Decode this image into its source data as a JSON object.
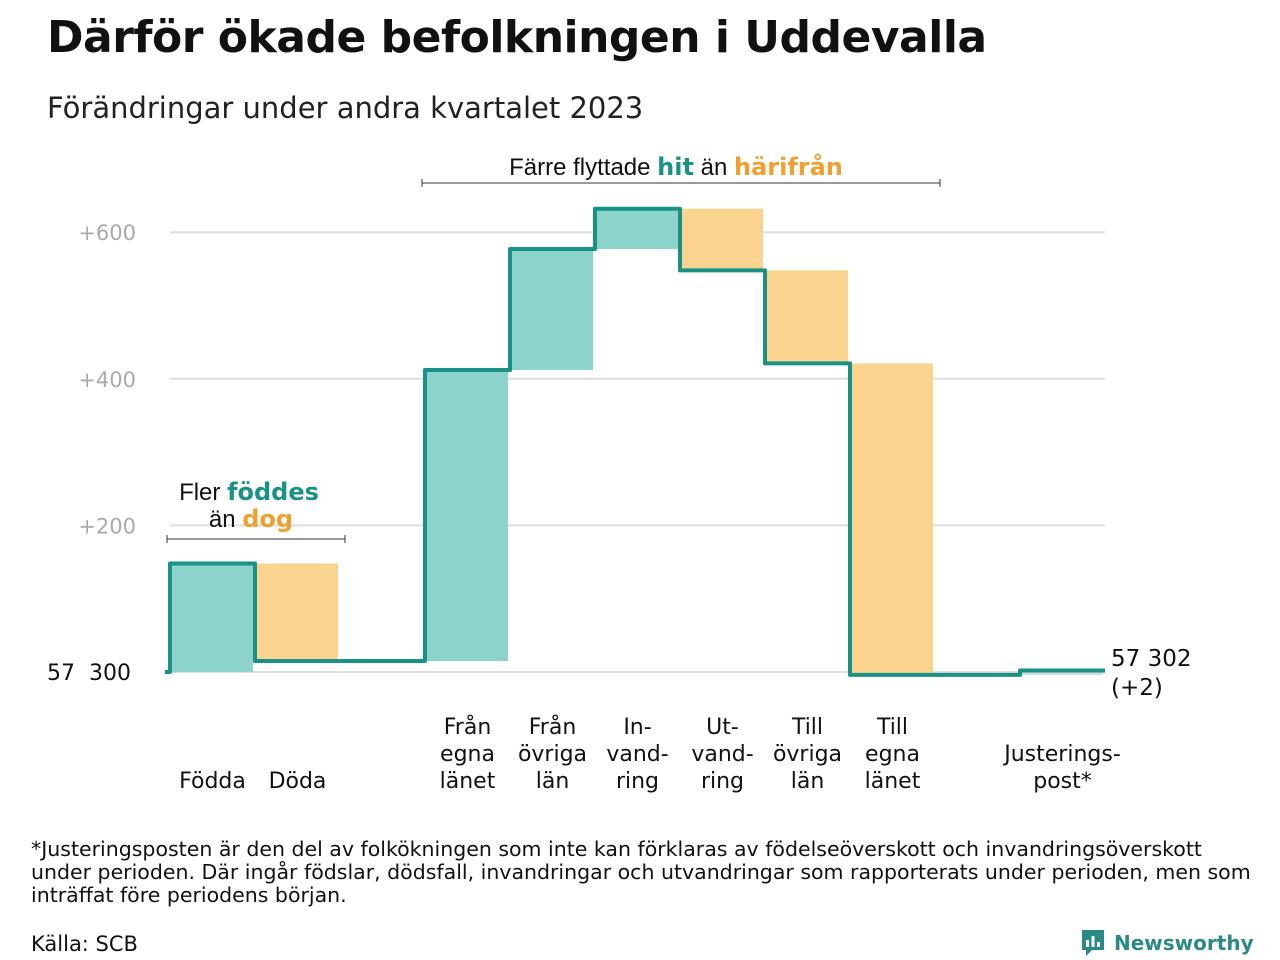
{
  "header": {
    "title": "Därför ökade befolkningen i Uddevalla",
    "subtitle": "Förändringar under andra kvartalet 2023"
  },
  "colors": {
    "increase": "#8cd3cb",
    "decrease": "#fad38f",
    "line": "#1a9185",
    "highlight_teal": "#1a9185",
    "highlight_orange": "#f0a030",
    "grid": "#dddddd",
    "axis_label": "#aaaaaa"
  },
  "annotations": {
    "move": {
      "pre": "Färre flyttade ",
      "hl1": "hit",
      "mid": " än ",
      "hl2": "härifrån"
    },
    "birth": {
      "pre1": "Fler ",
      "hl1": "föddes",
      "pre2": "än ",
      "hl2": "dog"
    }
  },
  "chart_data": {
    "type": "waterfall",
    "baseline": 57300,
    "baseline_label": "57  300",
    "end_label": "57 302",
    "end_change": "(+2)",
    "yticks": [
      {
        "value": 200,
        "label": "+200"
      },
      {
        "value": 400,
        "label": "+400"
      },
      {
        "value": 600,
        "label": "+600"
      }
    ],
    "ylim": [
      0,
      650
    ],
    "steps": [
      {
        "lines": [
          "Födda"
        ],
        "from": 0,
        "to": 148,
        "kind": "increase"
      },
      {
        "lines": [
          "Döda"
        ],
        "from": 148,
        "to": 15,
        "kind": "decrease"
      },
      {
        "lines": [
          "Från",
          "egna",
          "länet"
        ],
        "from": 15,
        "to": 412,
        "kind": "increase"
      },
      {
        "lines": [
          "Från",
          "övriga",
          "län"
        ],
        "from": 412,
        "to": 577,
        "kind": "increase"
      },
      {
        "lines": [
          "In-",
          "vand-",
          "ring"
        ],
        "from": 577,
        "to": 632,
        "kind": "increase"
      },
      {
        "lines": [
          "Ut-",
          "vand-",
          "ring"
        ],
        "from": 632,
        "to": 548,
        "kind": "decrease"
      },
      {
        "lines": [
          "Till",
          "övriga",
          "län"
        ],
        "from": 548,
        "to": 421,
        "kind": "decrease"
      },
      {
        "lines": [
          "Till",
          "egna",
          "länet"
        ],
        "from": 421,
        "to": -4,
        "kind": "decrease"
      },
      {
        "lines": [
          "Justerings-",
          "post*"
        ],
        "from": -4,
        "to": 2,
        "kind": "adjustment"
      }
    ]
  },
  "footer": {
    "footnote": "*Justeringsposten är den del av folkökningen som inte kan förklaras av födelseöverskott och invandringsöverskott under perioden. Där ingår födslar, dödsfall, invandringar och utvandringar som rapporterats under perioden, men som inträffat före periodens början.",
    "source": "Källa: SCB",
    "brand": "Newsworthy"
  }
}
